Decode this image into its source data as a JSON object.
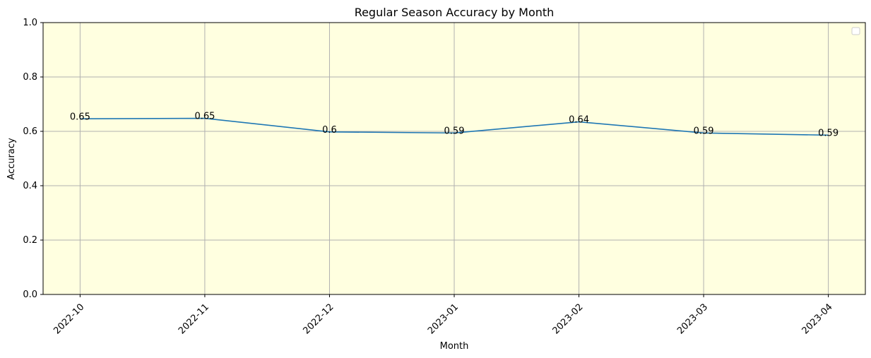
{
  "chart_data": {
    "type": "line",
    "title": "Regular Season Accuracy by Month",
    "xlabel": "Month",
    "ylabel": "Accuracy",
    "categories": [
      "2022-10",
      "2022-11",
      "2022-12",
      "2023-01",
      "2023-02",
      "2023-03",
      "2023-04"
    ],
    "series": [
      {
        "values": [
          0.646,
          0.648,
          0.598,
          0.594,
          0.635,
          0.594,
          0.586
        ],
        "labels": [
          "0.65",
          "0.65",
          "0.6",
          "0.59",
          "0.64",
          "0.59",
          "0.59"
        ]
      }
    ],
    "ylim": [
      0,
      1
    ],
    "yticks": [
      "0.0",
      "0.2",
      "0.4",
      "0.6",
      "0.8",
      "1.0"
    ],
    "grid": true,
    "legend_position": "upper right",
    "legend_empty": true,
    "colors": {
      "line": "#1f77b4",
      "plot_background": "#ffffe0",
      "grid": "#b0b0b0",
      "axis": "#000000"
    }
  }
}
